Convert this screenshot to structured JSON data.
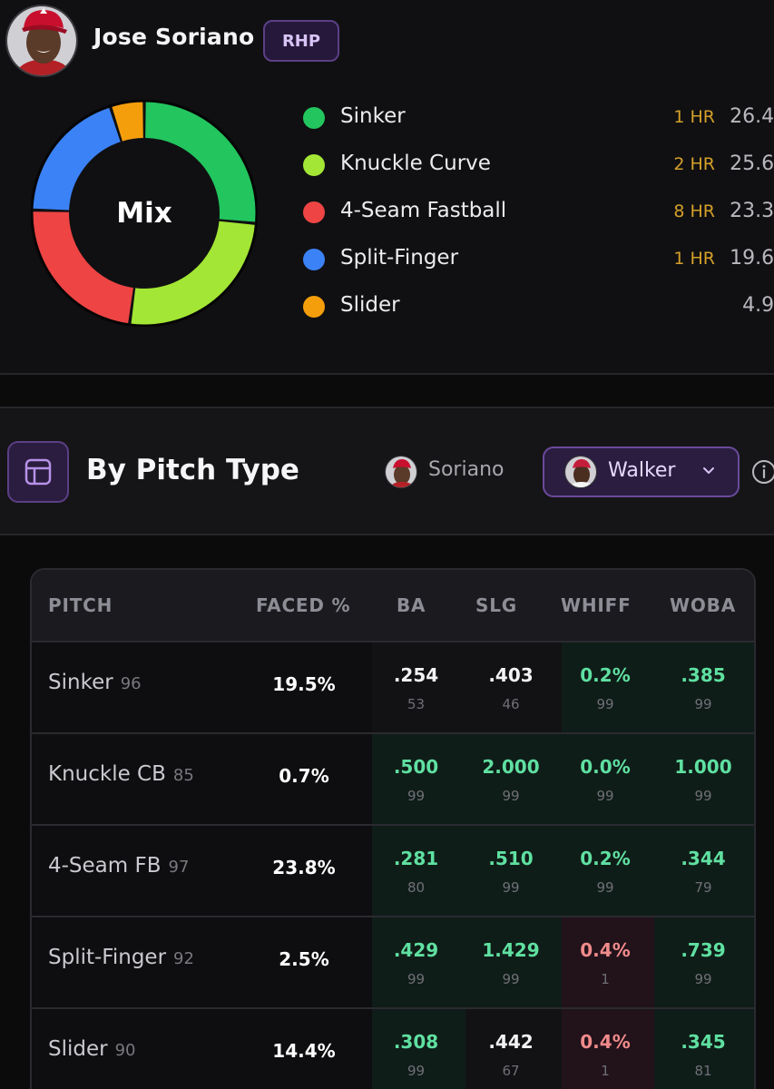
{
  "player": {
    "name": "Jose Soriano",
    "hand": "RHP"
  },
  "mix": {
    "center_label": "Mix",
    "items": [
      {
        "name": "Sinker",
        "hr": "1 HR",
        "pct": "26.4%",
        "value": 26.4,
        "color": "#22c55e"
      },
      {
        "name": "Knuckle Curve",
        "hr": "2 HR",
        "pct": "25.6%",
        "value": 25.6,
        "color": "#a3e635"
      },
      {
        "name": "4-Seam Fastball",
        "hr": "8 HR",
        "pct": "23.3%",
        "value": 23.3,
        "color": "#ef4444"
      },
      {
        "name": "Split-Finger",
        "hr": "1 HR",
        "pct": "19.6%",
        "value": 19.6,
        "color": "#3b82f6"
      },
      {
        "name": "Slider",
        "hr": "",
        "pct": "4.9%",
        "value": 4.9,
        "color": "#f59e0b"
      }
    ]
  },
  "pitch_type": {
    "title": "By Pitch Type",
    "option_pitcher": "Soriano",
    "option_batter": "Walker",
    "icon": "table-icon",
    "info_icon": "info-icon"
  },
  "table": {
    "headers": {
      "pitch": "PITCH",
      "faced": "FACED %",
      "ba": "BA",
      "slg": "SLG",
      "whiff": "WHIFF",
      "woba": "WOBA"
    },
    "rows": [
      {
        "pitch": "Sinker",
        "velo": "96",
        "faced": "19.5%",
        "ba": ".254",
        "ba_pct": "53",
        "slg": ".403",
        "slg_pct": "46",
        "whiff": "0.2%",
        "whiff_pct": "99",
        "woba": ".385",
        "woba_pct": "99"
      },
      {
        "pitch": "Knuckle CB",
        "velo": "85",
        "faced": "0.7%",
        "ba": ".500",
        "ba_pct": "99",
        "slg": "2.000",
        "slg_pct": "99",
        "whiff": "0.0%",
        "whiff_pct": "99",
        "woba": "1.000",
        "woba_pct": "99"
      },
      {
        "pitch": "4-Seam FB",
        "velo": "97",
        "faced": "23.8%",
        "ba": ".281",
        "ba_pct": "80",
        "slg": ".510",
        "slg_pct": "99",
        "whiff": "0.2%",
        "whiff_pct": "99",
        "woba": ".344",
        "woba_pct": "79"
      },
      {
        "pitch": "Split-Finger",
        "velo": "92",
        "faced": "2.5%",
        "ba": ".429",
        "ba_pct": "99",
        "slg": "1.429",
        "slg_pct": "99",
        "whiff": "0.4%",
        "whiff_pct": "1",
        "woba": ".739",
        "woba_pct": "99"
      },
      {
        "pitch": "Slider",
        "velo": "90",
        "faced": "14.4%",
        "ba": ".308",
        "ba_pct": "99",
        "slg": ".442",
        "slg_pct": "67",
        "whiff": "0.4%",
        "whiff_pct": "1",
        "woba": ".345",
        "woba_pct": "81"
      }
    ]
  },
  "colors": {
    "accent_purple": "#6b4a9c",
    "hr_gold": "#d4a02a",
    "good_green": "#5fe0a1",
    "bad_red": "#f08b8b"
  }
}
